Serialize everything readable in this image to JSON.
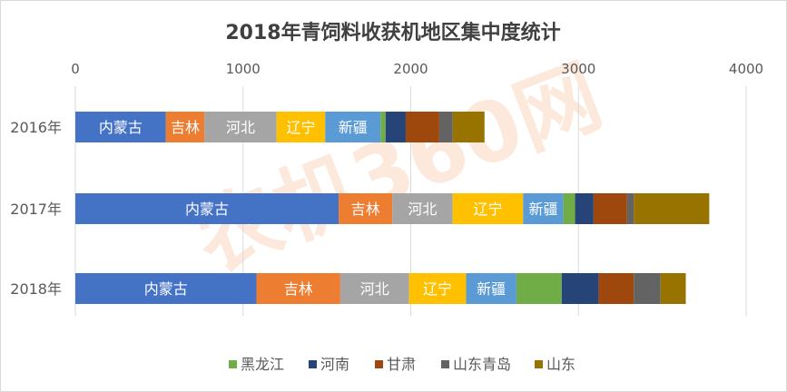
{
  "chart_data": {
    "type": "bar",
    "orientation": "horizontal",
    "stacked": true,
    "title": "2018年青饲料收获机地区集中度统计",
    "xlabel": "",
    "ylabel": "",
    "xlim": [
      0,
      4000
    ],
    "x_ticks": [
      "0",
      "1000",
      "2000",
      "3000",
      "4000"
    ],
    "grid": true,
    "legend_position": "bottom",
    "watermark": "农机360网",
    "categories": [
      "2016年",
      "2017年",
      "2018年"
    ],
    "series": [
      {
        "name": "内蒙古",
        "color": "#4472c4",
        "values": [
          540,
          1570,
          1080
        ]
      },
      {
        "name": "吉林",
        "color": "#ed7d31",
        "values": [
          230,
          320,
          500
        ]
      },
      {
        "name": "河北",
        "color": "#a5a5a5",
        "values": [
          430,
          360,
          410
        ]
      },
      {
        "name": "辽宁",
        "color": "#ffc000",
        "values": [
          290,
          420,
          340
        ]
      },
      {
        "name": "新疆",
        "color": "#5b9bd5",
        "values": [
          330,
          240,
          300
        ]
      },
      {
        "name": "黑龙江",
        "color": "#70ad47",
        "values": [
          30,
          70,
          270
        ]
      },
      {
        "name": "河南",
        "color": "#264478",
        "values": [
          120,
          110,
          220
        ]
      },
      {
        "name": "甘肃",
        "color": "#9e480e",
        "values": [
          200,
          200,
          210
        ]
      },
      {
        "name": "山东青岛",
        "color": "#636363",
        "values": [
          80,
          40,
          160
        ]
      },
      {
        "name": "山东",
        "color": "#997300",
        "values": [
          190,
          450,
          150
        ]
      }
    ],
    "bar_labels": [
      [
        "内蒙古",
        "吉林",
        "河北",
        "辽宁",
        "新疆"
      ],
      [
        "内蒙古",
        "吉林",
        "河北",
        "辽宁",
        "新疆"
      ],
      [
        "内蒙古",
        "吉林",
        "河北",
        "辽宁",
        "新疆"
      ]
    ],
    "legend": [
      "黑龙江",
      "河南",
      "甘肃",
      "山东青岛",
      "山东"
    ]
  }
}
